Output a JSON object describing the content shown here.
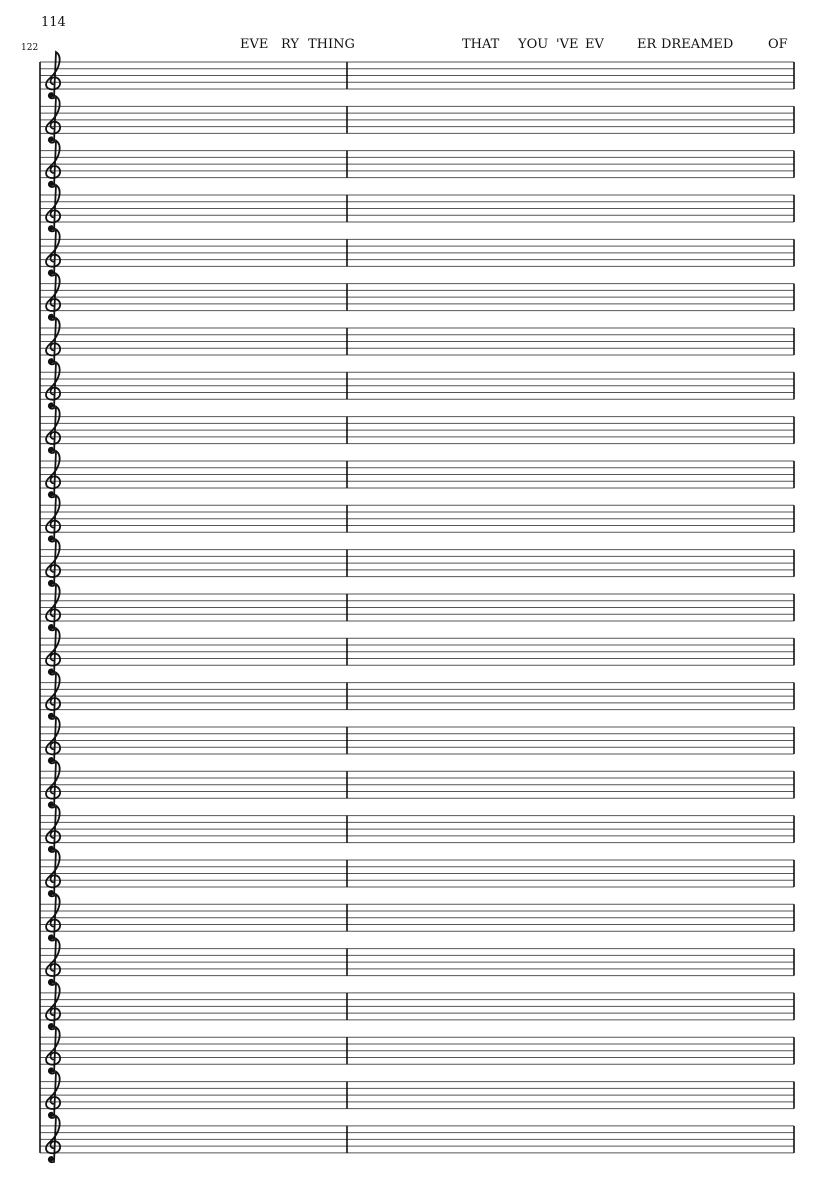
{
  "score": {
    "measure_number": "114",
    "system_number": "122",
    "lyrics": [
      "EVE",
      "RY",
      "THING",
      "THAT",
      "YOU",
      "'VE",
      "EV",
      "ER",
      "DREAMED",
      "OF"
    ],
    "staff_count": 25,
    "clef": "treble-clef-icon",
    "measures_per_staff": 2
  }
}
